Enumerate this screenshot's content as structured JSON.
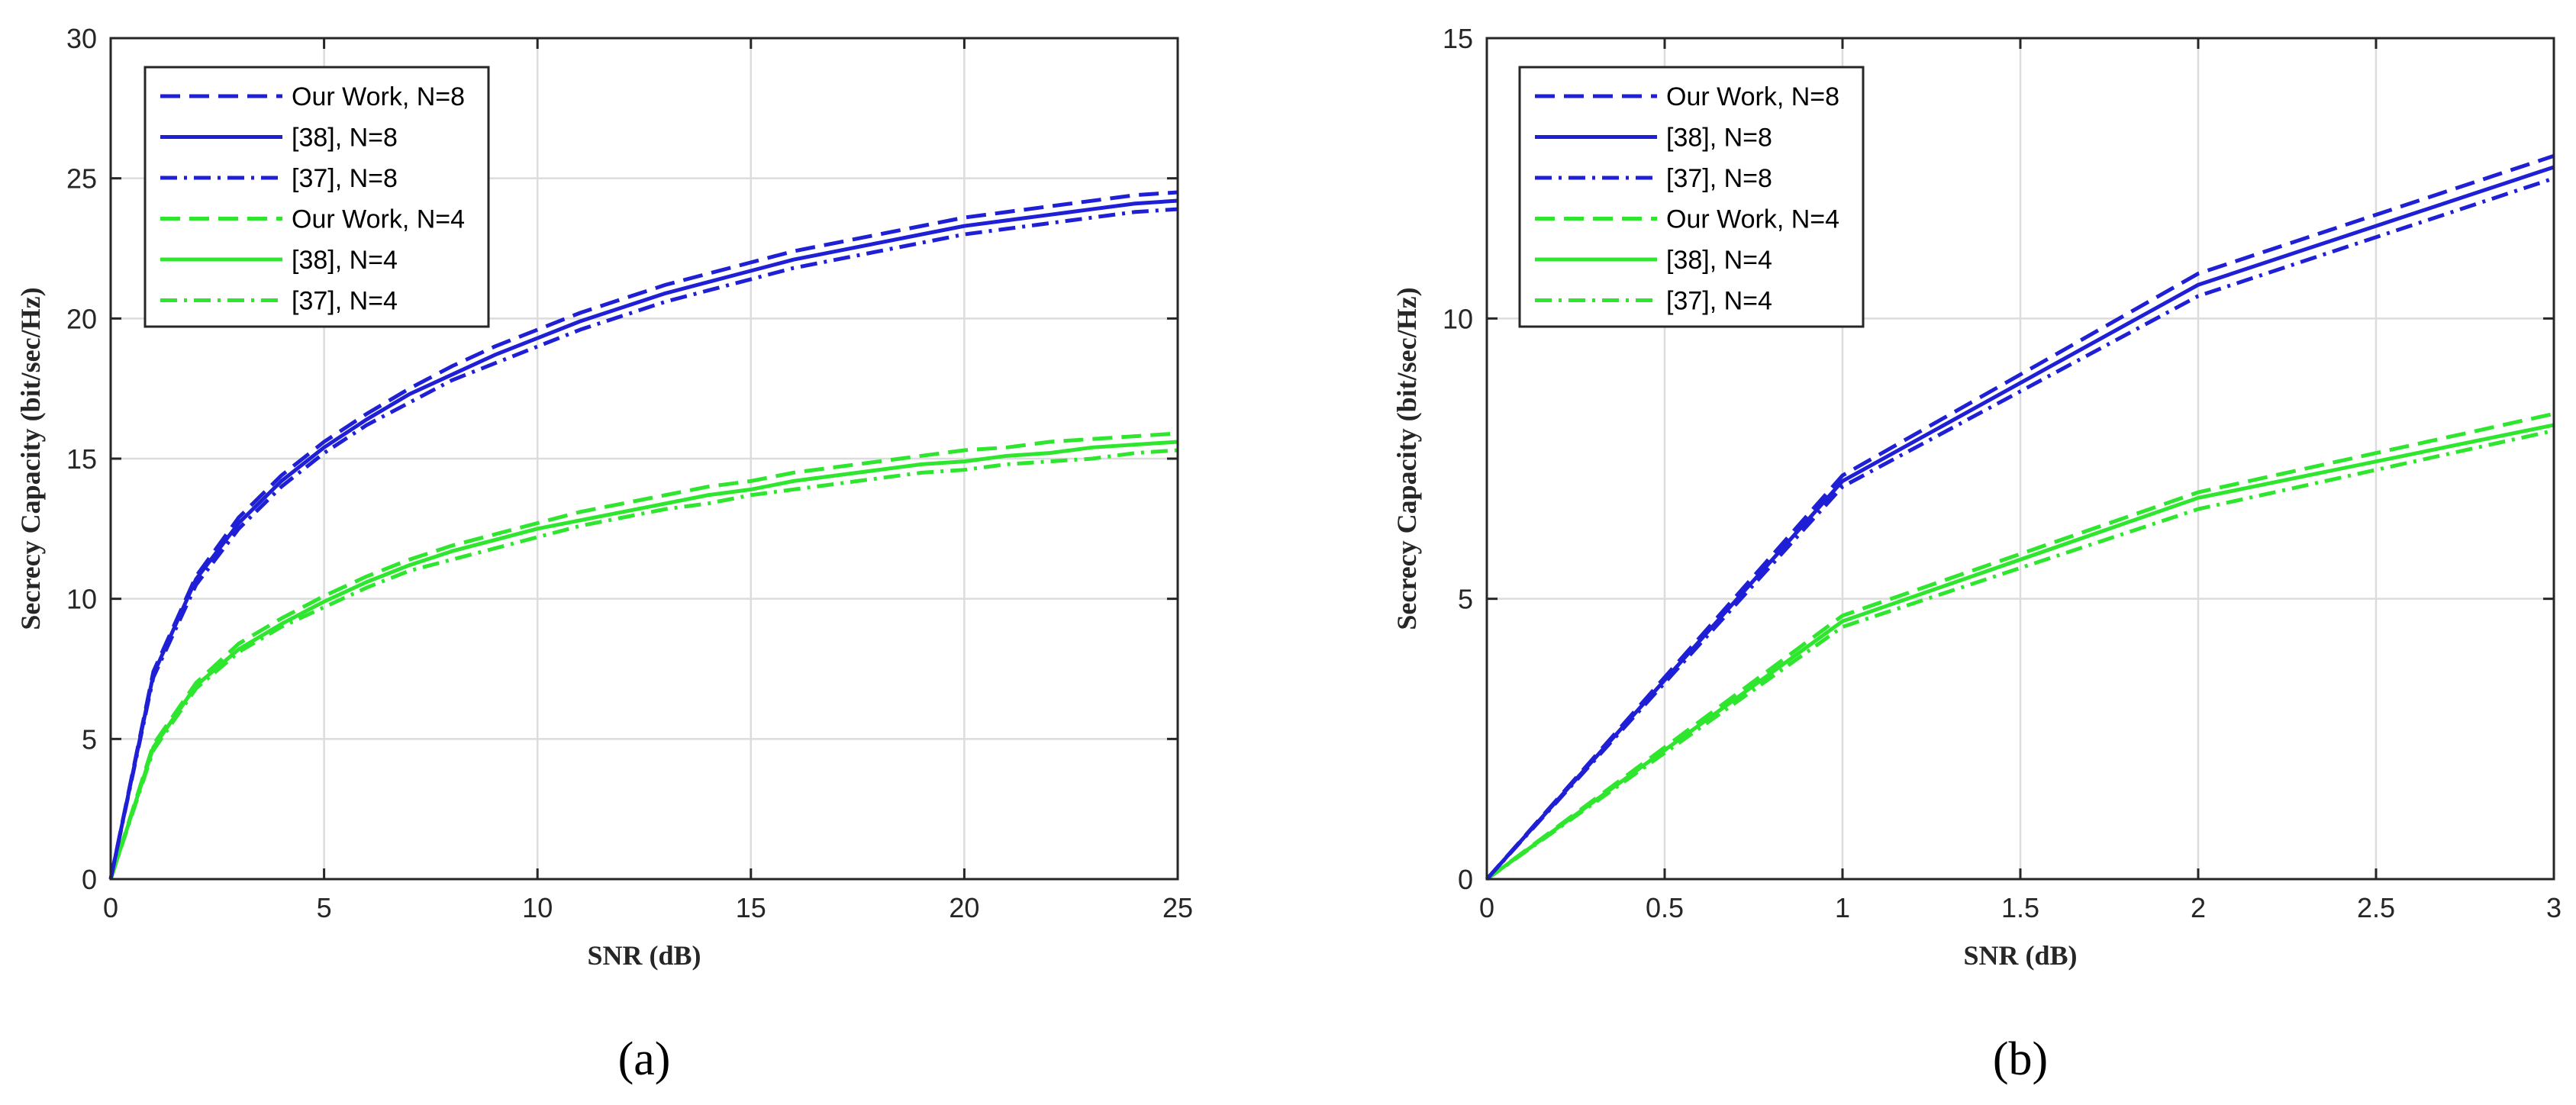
{
  "colors": {
    "n8": "#1f1fd6",
    "n4": "#2ee62e",
    "grid": "#dcdcdc",
    "axis": "#262626"
  },
  "series_order": [
    "our_n8",
    "r38_n8",
    "r37_n8",
    "our_n4",
    "r38_n4",
    "r37_n4"
  ],
  "series_style": {
    "our_n8": {
      "color": "n8",
      "dash": "dashed"
    },
    "r38_n8": {
      "color": "n8",
      "dash": "solid"
    },
    "r37_n8": {
      "color": "n8",
      "dash": "dashdot"
    },
    "our_n4": {
      "color": "n4",
      "dash": "dashed"
    },
    "r38_n4": {
      "color": "n4",
      "dash": "solid"
    },
    "r37_n4": {
      "color": "n4",
      "dash": "dashdot"
    }
  },
  "chart_data": [
    {
      "type": "line",
      "panel_label": "(a)",
      "xlabel": "SNR (dB)",
      "ylabel": "Secrecy Capacity (bit/sec/Hz)",
      "xlim": [
        0,
        25
      ],
      "ylim": [
        0,
        30
      ],
      "xticks": [
        0,
        5,
        10,
        15,
        20,
        25
      ],
      "yticks": [
        0,
        5,
        10,
        15,
        20,
        25,
        30
      ],
      "grid": true,
      "legend_position": "top-left",
      "x": [
        0,
        1,
        2,
        3,
        4,
        5,
        6,
        7,
        8,
        9,
        10,
        11,
        12,
        13,
        14,
        15,
        16,
        17,
        18,
        19,
        20,
        21,
        22,
        23,
        24,
        25
      ],
      "series": [
        {
          "key": "our_n8",
          "name": "Our Work, N=8",
          "values": [
            0,
            7.4,
            10.8,
            12.9,
            14.4,
            15.6,
            16.6,
            17.5,
            18.3,
            19.0,
            19.6,
            20.2,
            20.7,
            21.2,
            21.6,
            22.0,
            22.4,
            22.7,
            23.0,
            23.3,
            23.6,
            23.8,
            24.0,
            24.2,
            24.4,
            24.5
          ]
        },
        {
          "key": "r38_n8",
          "name": "[38], N=8",
          "values": [
            0,
            7.3,
            10.7,
            12.7,
            14.2,
            15.4,
            16.4,
            17.3,
            18.0,
            18.7,
            19.3,
            19.9,
            20.4,
            20.9,
            21.3,
            21.7,
            22.1,
            22.4,
            22.7,
            23.0,
            23.3,
            23.5,
            23.7,
            23.9,
            24.1,
            24.2
          ]
        },
        {
          "key": "r37_n8",
          "name": "[37], N=8",
          "values": [
            0,
            7.2,
            10.5,
            12.5,
            14.0,
            15.2,
            16.2,
            17.0,
            17.8,
            18.4,
            19.0,
            19.6,
            20.1,
            20.6,
            21.0,
            21.4,
            21.8,
            22.1,
            22.4,
            22.7,
            23.0,
            23.2,
            23.4,
            23.6,
            23.8,
            23.9
          ]
        },
        {
          "key": "our_n4",
          "name": "Our Work, N=4",
          "values": [
            0,
            4.8,
            7.0,
            8.4,
            9.3,
            10.1,
            10.8,
            11.4,
            11.9,
            12.3,
            12.7,
            13.1,
            13.4,
            13.7,
            14.0,
            14.2,
            14.5,
            14.7,
            14.9,
            15.1,
            15.3,
            15.4,
            15.6,
            15.7,
            15.8,
            15.9
          ]
        },
        {
          "key": "r38_n4",
          "name": "[38], N=4",
          "values": [
            0,
            4.7,
            6.9,
            8.2,
            9.1,
            9.9,
            10.6,
            11.2,
            11.7,
            12.1,
            12.5,
            12.8,
            13.1,
            13.4,
            13.7,
            13.9,
            14.2,
            14.4,
            14.6,
            14.8,
            14.9,
            15.1,
            15.2,
            15.4,
            15.5,
            15.6
          ]
        },
        {
          "key": "r37_n4",
          "name": "[37], N=4",
          "values": [
            0,
            4.6,
            6.8,
            8.1,
            9.0,
            9.7,
            10.4,
            11.0,
            11.4,
            11.8,
            12.2,
            12.6,
            12.9,
            13.2,
            13.4,
            13.7,
            13.9,
            14.1,
            14.3,
            14.5,
            14.6,
            14.8,
            14.9,
            15.0,
            15.2,
            15.3
          ]
        }
      ]
    },
    {
      "type": "line",
      "panel_label": "(b)",
      "xlabel": "SNR (dB)",
      "ylabel": "Secrecy Capacity (bit/sec/Hz)",
      "xlim": [
        0,
        3
      ],
      "ylim": [
        0,
        15
      ],
      "xticks": [
        0,
        0.5,
        1,
        1.5,
        2,
        2.5,
        3
      ],
      "yticks": [
        0,
        5,
        10,
        15
      ],
      "grid": true,
      "legend_position": "top-left",
      "x": [
        0,
        1,
        2,
        3
      ],
      "series": [
        {
          "key": "our_n8",
          "name": "Our Work, N=8",
          "values": [
            0,
            7.2,
            10.8,
            12.9
          ]
        },
        {
          "key": "r38_n8",
          "name": "[38], N=8",
          "values": [
            0,
            7.1,
            10.6,
            12.7
          ]
        },
        {
          "key": "r37_n8",
          "name": "[37], N=8",
          "values": [
            0,
            7.0,
            10.4,
            12.5
          ]
        },
        {
          "key": "our_n4",
          "name": "Our Work, N=4",
          "values": [
            0,
            4.7,
            6.9,
            8.3
          ]
        },
        {
          "key": "r38_n4",
          "name": "[38], N=4",
          "values": [
            0,
            4.6,
            6.8,
            8.1
          ]
        },
        {
          "key": "r37_n4",
          "name": "[37], N=4",
          "values": [
            0,
            4.5,
            6.6,
            8.0
          ]
        }
      ]
    }
  ]
}
